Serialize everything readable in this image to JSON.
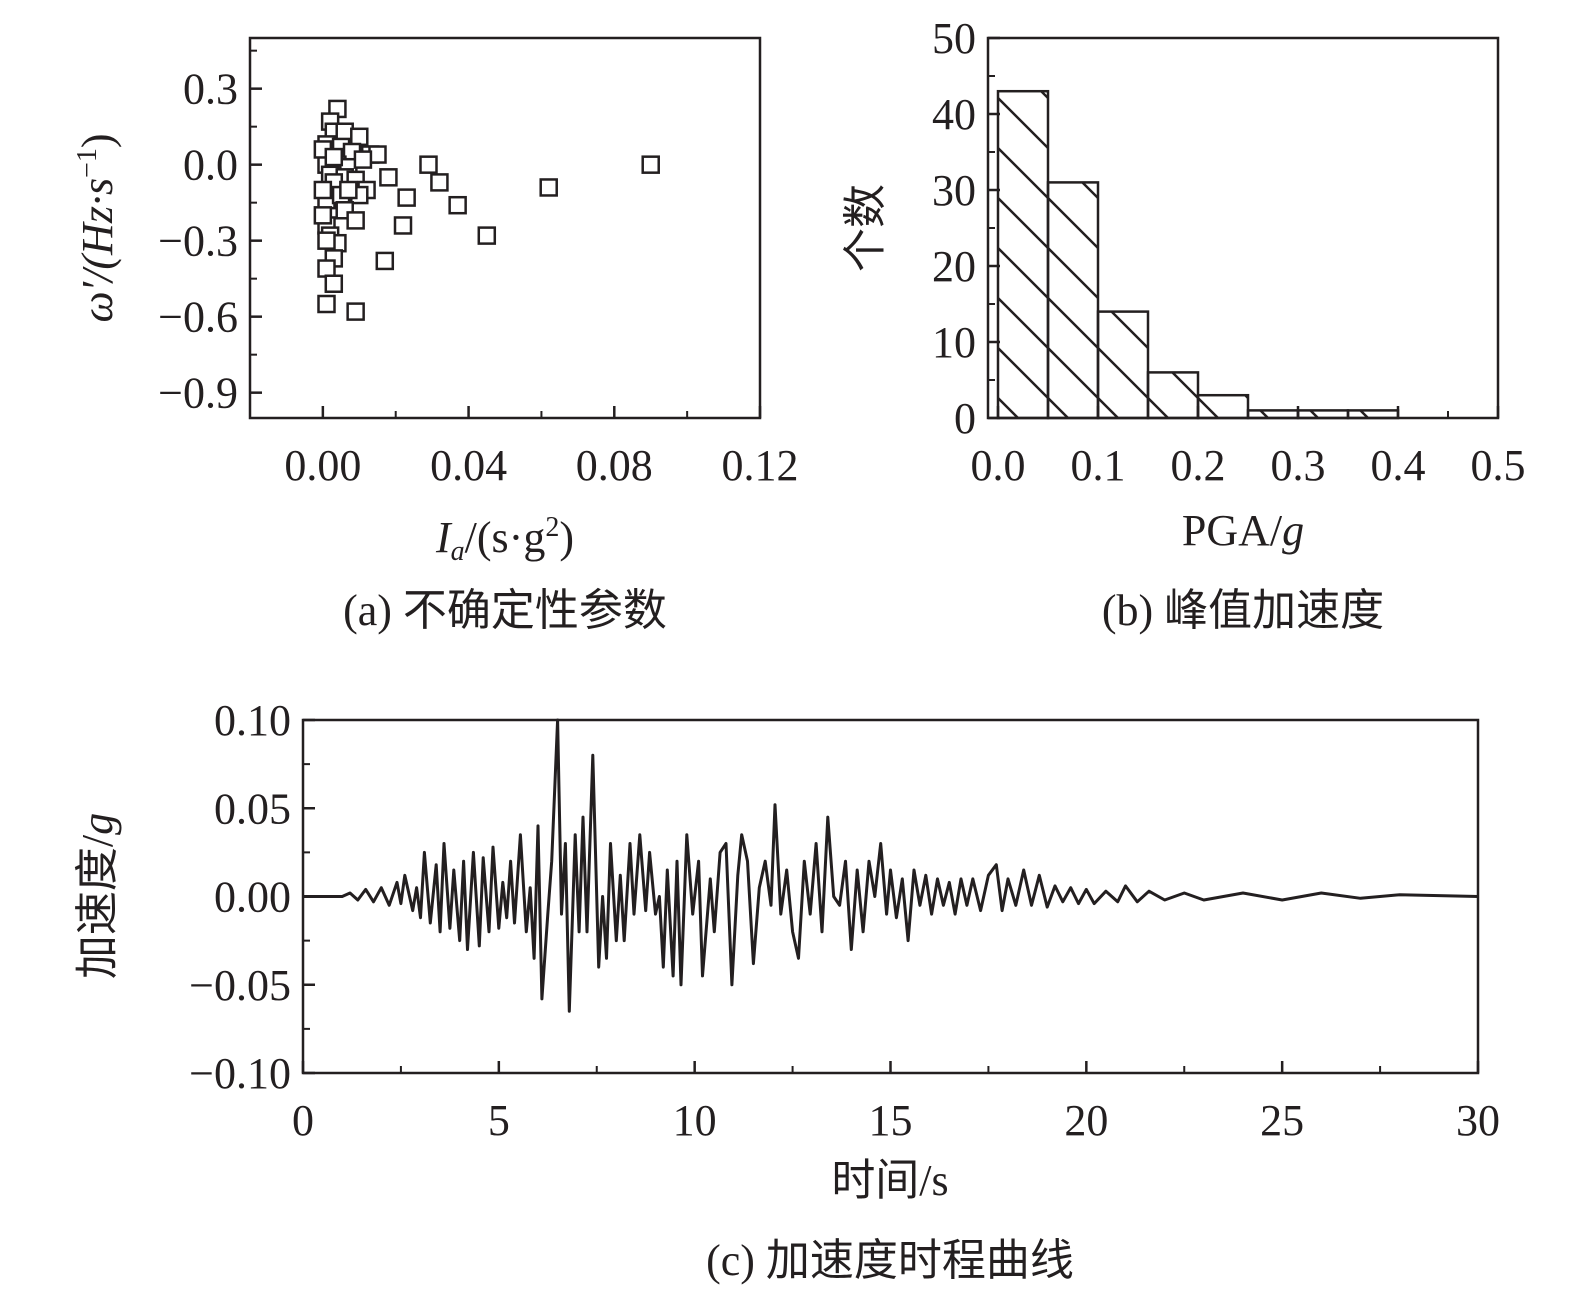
{
  "colors": {
    "ink": "#231f20",
    "background": "#ffffff"
  },
  "chart_data": [
    {
      "id": "a",
      "type": "scatter",
      "caption": "(a) 不确定性参数",
      "xlabel_main": "I",
      "xlabel_sub": "a",
      "xlabel_rest": "/(s·g",
      "xlabel_sup": "2",
      "xlabel_end": ")",
      "ylabel_main": "ω′/(Hz·s",
      "ylabel_sup": "−1",
      "ylabel_end": ")",
      "xlim": [
        -0.02,
        0.12
      ],
      "ylim": [
        -1.0,
        0.5
      ],
      "xticks": [
        0.0,
        0.04,
        0.08,
        0.12
      ],
      "xtick_labels": [
        "0.00",
        "0.04",
        "0.08",
        "0.12"
      ],
      "yticks": [
        0.3,
        0.0,
        -0.3,
        -0.6,
        -0.9
      ],
      "ytick_labels": [
        "0.3",
        "0.0",
        "−0.3",
        "−0.6",
        "−0.9"
      ],
      "marker": "open-square",
      "points": [
        [
          0.004,
          0.22
        ],
        [
          0.002,
          0.17
        ],
        [
          0.003,
          0.13
        ],
        [
          0.006,
          0.13
        ],
        [
          0.01,
          0.11
        ],
        [
          0.001,
          0.08
        ],
        [
          0.005,
          0.07
        ],
        [
          0.008,
          0.05
        ],
        [
          0.013,
          0.04
        ],
        [
          0.015,
          0.04
        ],
        [
          0.001,
          0.0
        ],
        [
          0.004,
          0.0
        ],
        [
          0.007,
          -0.01
        ],
        [
          0.011,
          0.02
        ],
        [
          0.002,
          -0.04
        ],
        [
          0.006,
          -0.05
        ],
        [
          0.009,
          -0.06
        ],
        [
          0.003,
          -0.07
        ],
        [
          0.012,
          -0.1
        ],
        [
          0.018,
          -0.05
        ],
        [
          0.029,
          0.0
        ],
        [
          0.032,
          -0.07
        ],
        [
          0.001,
          -0.14
        ],
        [
          0.005,
          -0.12
        ],
        [
          0.01,
          -0.12
        ],
        [
          0.037,
          -0.16
        ],
        [
          0.023,
          -0.13
        ],
        [
          0.006,
          -0.18
        ],
        [
          0.009,
          -0.22
        ],
        [
          0.001,
          -0.24
        ],
        [
          0.002,
          -0.28
        ],
        [
          0.004,
          -0.31
        ],
        [
          0.022,
          -0.24
        ],
        [
          0.045,
          -0.28
        ],
        [
          0.003,
          -0.37
        ],
        [
          0.017,
          -0.38
        ],
        [
          0.001,
          -0.41
        ],
        [
          0.003,
          -0.47
        ],
        [
          0.001,
          -0.55
        ],
        [
          0.009,
          -0.58
        ],
        [
          0.062,
          -0.09
        ],
        [
          0.09,
          0.0
        ],
        [
          0.0,
          0.06
        ],
        [
          0.0,
          -0.1
        ],
        [
          0.0,
          -0.2
        ],
        [
          0.001,
          -0.3
        ],
        [
          0.007,
          -0.1
        ],
        [
          0.003,
          0.03
        ]
      ]
    },
    {
      "id": "b",
      "type": "bar",
      "caption": "(b) 峰值加速度",
      "xlabel_main": "PGA/",
      "xlabel_italic": "g",
      "ylabel": "个数",
      "xlim": [
        -0.01,
        0.5
      ],
      "ylim": [
        0,
        50
      ],
      "xticks": [
        0.0,
        0.1,
        0.2,
        0.3,
        0.4,
        0.5
      ],
      "xtick_labels": [
        "0.0",
        "0.1",
        "0.2",
        "0.3",
        "0.4",
        "0.5"
      ],
      "yticks": [
        0,
        10,
        20,
        30,
        40,
        50
      ],
      "ytick_labels": [
        "0",
        "10",
        "20",
        "30",
        "40",
        "50"
      ],
      "bin_edges": [
        0.0,
        0.05,
        0.1,
        0.15,
        0.2,
        0.25,
        0.3,
        0.35,
        0.4
      ],
      "values": [
        43,
        31,
        14,
        6,
        3,
        1,
        1,
        1
      ],
      "fill": "hatched"
    },
    {
      "id": "c",
      "type": "line",
      "caption": "(c) 加速度时程曲线",
      "xlabel": "时间/s",
      "ylabel_main": "加速度/",
      "ylabel_italic": "g",
      "xlim": [
        0,
        30
      ],
      "ylim": [
        -0.1,
        0.1
      ],
      "xticks": [
        0,
        5,
        10,
        15,
        20,
        25,
        30
      ],
      "xtick_labels": [
        "0",
        "5",
        "10",
        "15",
        "20",
        "25",
        "30"
      ],
      "yticks": [
        0.1,
        0.05,
        0.0,
        -0.05,
        -0.1
      ],
      "ytick_labels": [
        "0.10",
        "0.05",
        "0.00",
        "−0.05",
        "−0.10"
      ],
      "series": [
        {
          "name": "acceleration",
          "points": [
            [
              0,
              0
            ],
            [
              1.0,
              0
            ],
            [
              1.2,
              0.002
            ],
            [
              1.4,
              -0.002
            ],
            [
              1.6,
              0.004
            ],
            [
              1.8,
              -0.003
            ],
            [
              2.0,
              0.005
            ],
            [
              2.2,
              -0.005
            ],
            [
              2.4,
              0.008
            ],
            [
              2.5,
              -0.004
            ],
            [
              2.6,
              0.012
            ],
            [
              2.8,
              -0.008
            ],
            [
              2.9,
              0.005
            ],
            [
              3.0,
              -0.012
            ],
            [
              3.1,
              0.025
            ],
            [
              3.25,
              -0.015
            ],
            [
              3.4,
              0.018
            ],
            [
              3.5,
              -0.02
            ],
            [
              3.6,
              0.03
            ],
            [
              3.75,
              -0.018
            ],
            [
              3.85,
              0.015
            ],
            [
              4.0,
              -0.025
            ],
            [
              4.1,
              0.02
            ],
            [
              4.2,
              -0.03
            ],
            [
              4.35,
              0.025
            ],
            [
              4.5,
              -0.028
            ],
            [
              4.6,
              0.022
            ],
            [
              4.75,
              -0.02
            ],
            [
              4.85,
              0.028
            ],
            [
              5.0,
              -0.018
            ],
            [
              5.1,
              0.008
            ],
            [
              5.2,
              -0.012
            ],
            [
              5.3,
              0.02
            ],
            [
              5.4,
              -0.015
            ],
            [
              5.55,
              0.035
            ],
            [
              5.7,
              -0.02
            ],
            [
              5.8,
              0.005
            ],
            [
              5.9,
              -0.035
            ],
            [
              6.0,
              0.04
            ],
            [
              6.1,
              -0.058
            ],
            [
              6.25,
              -0.01
            ],
            [
              6.35,
              0.02
            ],
            [
              6.5,
              0.1
            ],
            [
              6.6,
              -0.01
            ],
            [
              6.7,
              0.03
            ],
            [
              6.8,
              -0.065
            ],
            [
              6.95,
              0.035
            ],
            [
              7.05,
              -0.02
            ],
            [
              7.15,
              0.045
            ],
            [
              7.25,
              -0.02
            ],
            [
              7.4,
              0.08
            ],
            [
              7.55,
              -0.04
            ],
            [
              7.65,
              0.0
            ],
            [
              7.75,
              -0.035
            ],
            [
              7.85,
              0.03
            ],
            [
              8.0,
              -0.025
            ],
            [
              8.1,
              0.012
            ],
            [
              8.2,
              -0.025
            ],
            [
              8.35,
              0.03
            ],
            [
              8.45,
              -0.01
            ],
            [
              8.6,
              0.035
            ],
            [
              8.75,
              -0.008
            ],
            [
              8.85,
              0.025
            ],
            [
              9.0,
              -0.01
            ],
            [
              9.1,
              0.0
            ],
            [
              9.2,
              -0.04
            ],
            [
              9.3,
              0.015
            ],
            [
              9.45,
              -0.045
            ],
            [
              9.55,
              0.02
            ],
            [
              9.65,
              -0.05
            ],
            [
              9.8,
              0.035
            ],
            [
              9.95,
              -0.01
            ],
            [
              10.1,
              0.02
            ],
            [
              10.2,
              -0.045
            ],
            [
              10.4,
              0.01
            ],
            [
              10.5,
              -0.02
            ],
            [
              10.65,
              0.025
            ],
            [
              10.8,
              0.03
            ],
            [
              10.95,
              -0.05
            ],
            [
              11.1,
              0.012
            ],
            [
              11.2,
              0.035
            ],
            [
              11.35,
              0.02
            ],
            [
              11.5,
              -0.038
            ],
            [
              11.65,
              0.005
            ],
            [
              11.8,
              0.02
            ],
            [
              11.95,
              -0.005
            ],
            [
              12.05,
              0.052
            ],
            [
              12.2,
              -0.01
            ],
            [
              12.35,
              0.015
            ],
            [
              12.5,
              -0.02
            ],
            [
              12.65,
              -0.035
            ],
            [
              12.8,
              0.02
            ],
            [
              12.95,
              -0.01
            ],
            [
              13.1,
              0.03
            ],
            [
              13.25,
              -0.02
            ],
            [
              13.4,
              0.045
            ],
            [
              13.55,
              0.0
            ],
            [
              13.7,
              -0.005
            ],
            [
              13.85,
              0.02
            ],
            [
              14.0,
              -0.03
            ],
            [
              14.15,
              0.015
            ],
            [
              14.3,
              -0.02
            ],
            [
              14.45,
              0.02
            ],
            [
              14.6,
              0.0
            ],
            [
              14.75,
              0.03
            ],
            [
              14.9,
              -0.01
            ],
            [
              15.0,
              0.015
            ],
            [
              15.15,
              -0.012
            ],
            [
              15.3,
              0.01
            ],
            [
              15.45,
              -0.025
            ],
            [
              15.6,
              0.015
            ],
            [
              15.75,
              -0.005
            ],
            [
              15.9,
              0.012
            ],
            [
              16.05,
              -0.01
            ],
            [
              16.2,
              0.01
            ],
            [
              16.35,
              -0.005
            ],
            [
              16.5,
              0.008
            ],
            [
              16.65,
              -0.01
            ],
            [
              16.8,
              0.01
            ],
            [
              16.95,
              -0.005
            ],
            [
              17.1,
              0.01
            ],
            [
              17.3,
              -0.008
            ],
            [
              17.5,
              0.012
            ],
            [
              17.7,
              0.018
            ],
            [
              17.85,
              -0.008
            ],
            [
              18.0,
              0.01
            ],
            [
              18.2,
              -0.005
            ],
            [
              18.4,
              0.015
            ],
            [
              18.6,
              -0.005
            ],
            [
              18.8,
              0.012
            ],
            [
              19.0,
              -0.006
            ],
            [
              19.2,
              0.006
            ],
            [
              19.4,
              -0.003
            ],
            [
              19.6,
              0.005
            ],
            [
              19.8,
              -0.004
            ],
            [
              20.0,
              0.004
            ],
            [
              20.2,
              -0.004
            ],
            [
              20.5,
              0.003
            ],
            [
              20.8,
              -0.003
            ],
            [
              21.0,
              0.006
            ],
            [
              21.3,
              -0.003
            ],
            [
              21.6,
              0.003
            ],
            [
              22.0,
              -0.002
            ],
            [
              22.5,
              0.002
            ],
            [
              23.0,
              -0.002
            ],
            [
              24.0,
              0.002
            ],
            [
              25.0,
              -0.002
            ],
            [
              26.0,
              0.002
            ],
            [
              27.0,
              -0.001
            ],
            [
              28.0,
              0.001
            ],
            [
              30.0,
              0.0
            ]
          ]
        }
      ]
    }
  ]
}
